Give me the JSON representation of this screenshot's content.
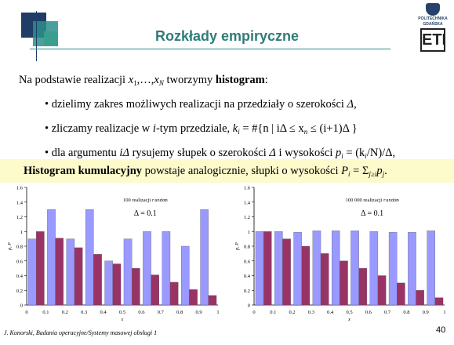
{
  "slide": {
    "title": "Rozkłady empiryczne",
    "page_number": "40"
  },
  "logo": {
    "line1": "POLITECHNIKA",
    "line2": "GDAŃSKA",
    "mark": "ETI"
  },
  "intro": {
    "before": "Na podstawie realizacji ",
    "x1": "x",
    "x1_sub": "1",
    "mid": ",…,",
    "xN": "x",
    "xN_sub": "N",
    "after": " tworzymy ",
    "bold": "histogram",
    "end": ":"
  },
  "bullet1": {
    "text": "• dzielimy zakres możliwych realizacji na przedziały o szerokości ",
    "delta": "Δ",
    "end": ","
  },
  "bullet2": {
    "text1": "• zliczamy realizacje w ",
    "i": "i",
    "text2": "-tym przedziale, ",
    "k": "k",
    "k_sub": "i",
    "formula": " = #{n | iΔ ≤ x",
    "n_sub": "n",
    "formula_end": " ≤ (i+1)Δ }"
  },
  "bullet3": {
    "text1": "• dla argumentu ",
    "arg": "iΔ",
    "text2": " rysujemy słupek o szerokości ",
    "delta": "Δ",
    "text3": " i wysokości ",
    "p": "p",
    "p_sub": "i",
    "formula": " = (k",
    "k_sub": "i",
    "formula_end": "/N)/Δ,"
  },
  "cumulative": {
    "bold": "Histogram kumulacyjny",
    "text": " powstaje analogicznie, słupki o wysokości ",
    "P": "P",
    "P_sub": "i",
    "eq": " = Σ",
    "sum_sub": "j≥i",
    "p": "p",
    "p_sub": "j",
    "end": "."
  },
  "footer": {
    "text": "J. Konorski, Badania operacyjne/Systemy masowej obsługi 1"
  },
  "colors": {
    "title": "#2e7d78",
    "bar_blue": "#9999ff",
    "bar_maroon": "#993366",
    "band": "#fdfbcc"
  },
  "chart_data": [
    {
      "type": "bar",
      "annotation": "100 realizacji",
      "annotation_tag": "random",
      "delta_label": "Δ = 0.1",
      "xlabel": "x",
      "ylabel": "p, P",
      "ylim": [
        0,
        1.6
      ],
      "yticks": [
        "0",
        "0.2",
        "0.4",
        "0.6",
        "0.8",
        "1",
        "1.2",
        "1.4",
        "1.6"
      ],
      "xticks": [
        "0",
        "0.1",
        "0.2",
        "0.3",
        "0.4",
        "0.5",
        "0.6",
        "0.7",
        "0.8",
        "0.9",
        "1"
      ],
      "series": [
        {
          "color": "#9999ff",
          "values": [
            0.9,
            1.3,
            0.9,
            1.3,
            0.6,
            0.9,
            1.0,
            1.0,
            0.8,
            1.3
          ]
        },
        {
          "color": "#993366",
          "values": [
            1.0,
            0.91,
            0.78,
            0.69,
            0.56,
            0.5,
            0.41,
            0.31,
            0.21,
            0.13
          ]
        }
      ]
    },
    {
      "type": "bar",
      "annotation": "100 000 realizacji",
      "annotation_tag": "random",
      "delta_label": "Δ = 0.1",
      "xlabel": "x",
      "ylabel": "p, P",
      "ylim": [
        0,
        1.6
      ],
      "yticks": [
        "0",
        "0.2",
        "0.4",
        "0.6",
        "0.8",
        "1",
        "1.2",
        "1.4",
        "1.6"
      ],
      "xticks": [
        "0",
        "0.1",
        "0.2",
        "0.3",
        "0.4",
        "0.5",
        "0.6",
        "0.7",
        "0.8",
        "0.9",
        "1"
      ],
      "series": [
        {
          "color": "#9999ff",
          "values": [
            1.0,
            1.0,
            0.99,
            1.01,
            1.01,
            1.01,
            1.0,
            0.99,
            0.99,
            1.01
          ]
        },
        {
          "color": "#993366",
          "values": [
            1.0,
            0.9,
            0.8,
            0.7,
            0.6,
            0.5,
            0.4,
            0.3,
            0.2,
            0.1
          ]
        }
      ]
    }
  ]
}
